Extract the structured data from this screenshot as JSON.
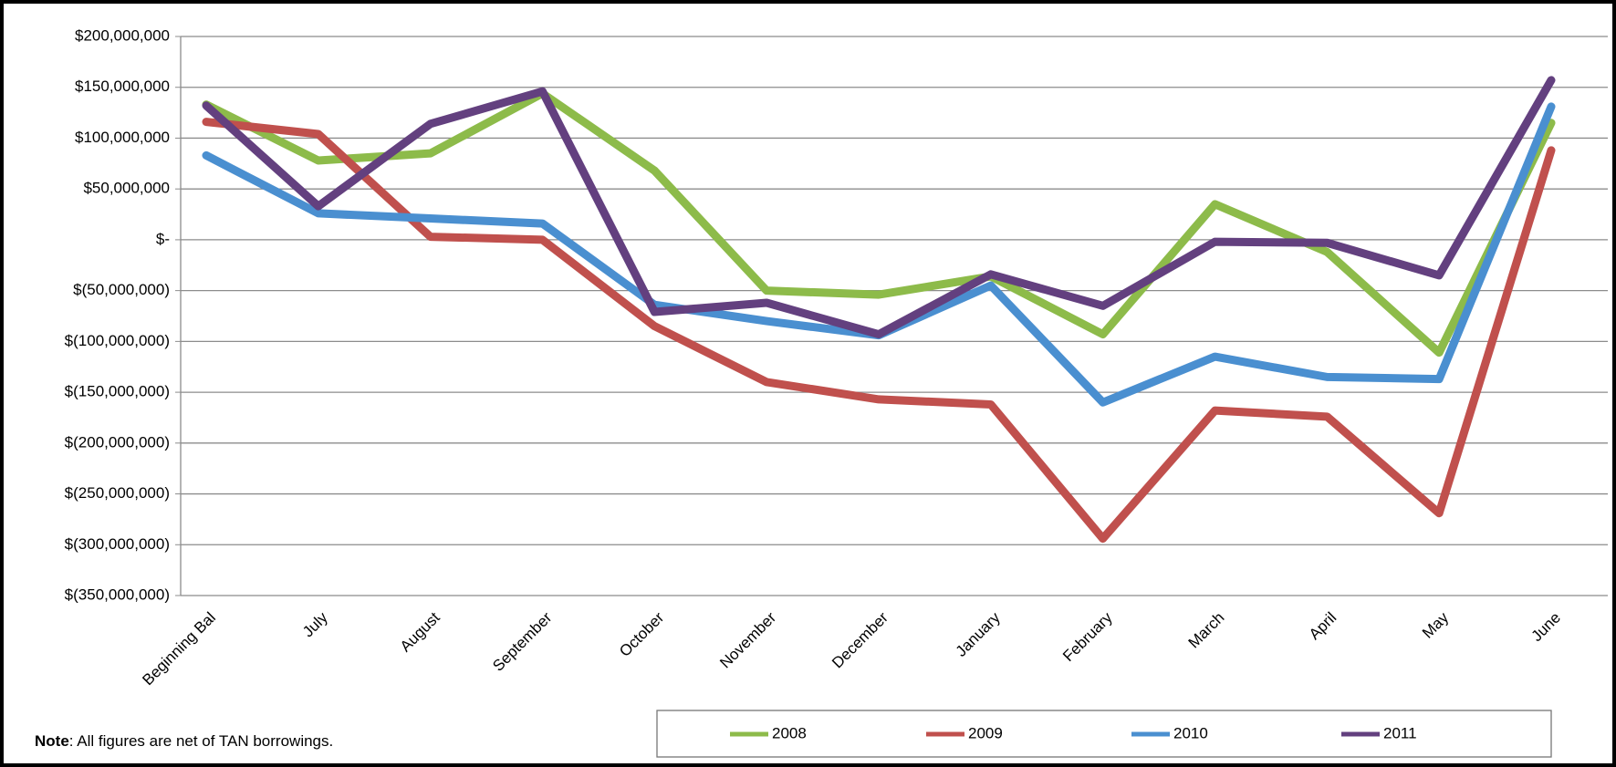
{
  "chart_data": {
    "type": "line",
    "categories": [
      "Beginning Bal",
      "July",
      "August",
      "September",
      "October",
      "November",
      "December",
      "January",
      "February",
      "March",
      "April",
      "May",
      "June"
    ],
    "series": [
      {
        "name": "2008",
        "color": "#8dbb4a",
        "values": [
          133000000,
          78000000,
          85000000,
          144000000,
          68000000,
          -50000000,
          -54000000,
          -36000000,
          -93000000,
          35000000,
          -12000000,
          -111000000,
          115000000
        ]
      },
      {
        "name": "2009",
        "color": "#c0504d",
        "values": [
          116000000,
          104000000,
          3000000,
          0,
          -85000000,
          -140000000,
          -157000000,
          -162000000,
          -294000000,
          -168000000,
          -174000000,
          -269000000,
          88000000
        ]
      },
      {
        "name": "2010",
        "color": "#4a8fd0",
        "values": [
          83000000,
          26000000,
          21000000,
          16000000,
          -64000000,
          -80000000,
          -94000000,
          -45000000,
          -160000000,
          -115000000,
          -135000000,
          -137000000,
          131000000
        ]
      },
      {
        "name": "2011",
        "color": "#63407f",
        "values": [
          132000000,
          33000000,
          114000000,
          146000000,
          -71000000,
          -62000000,
          -93000000,
          -34000000,
          -65000000,
          -2000000,
          -3000000,
          -35000000,
          157000000
        ]
      }
    ],
    "ylim": [
      -350000000,
      200000000
    ],
    "yticks": [
      {
        "value": 200000000,
        "label": "$200,000,000"
      },
      {
        "value": 150000000,
        "label": "$150,000,000"
      },
      {
        "value": 100000000,
        "label": "$100,000,000"
      },
      {
        "value": 50000000,
        "label": "$50,000,000"
      },
      {
        "value": 0,
        "label": "$-"
      },
      {
        "value": -50000000,
        "label": "$(50,000,000)"
      },
      {
        "value": -100000000,
        "label": "$(100,000,000)"
      },
      {
        "value": -150000000,
        "label": "$(150,000,000)"
      },
      {
        "value": -200000000,
        "label": "$(200,000,000)"
      },
      {
        "value": -250000000,
        "label": "$(250,000,000)"
      },
      {
        "value": -300000000,
        "label": "$(300,000,000)"
      },
      {
        "value": -350000000,
        "label": "$(350,000,000)"
      }
    ],
    "grid": true,
    "note_label": "Note",
    "note_text": ": All figures are net of TAN borrowings."
  }
}
